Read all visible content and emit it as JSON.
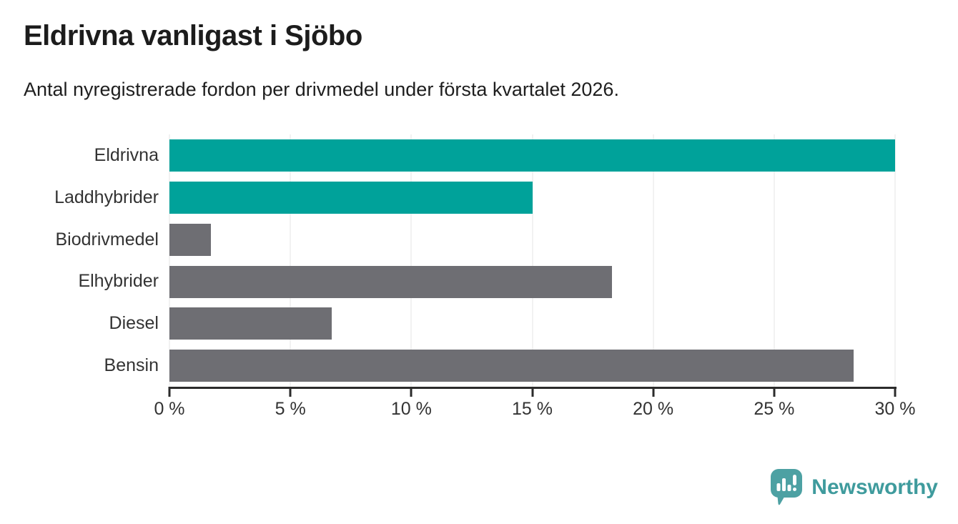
{
  "title": "Eldrivna vanligast i Sjöbo",
  "subtitle": "Antal nyregistrerade fordon per drivmedel under första kvartalet 2026.",
  "colors": {
    "teal_bar": "#00a29a",
    "gray_bar": "#6e6e73",
    "axis": "#2b2b2b",
    "grid": "#e4e4e4",
    "label_text": "#333333",
    "title_text": "#1c1c1c",
    "brand": "#3f9b9d",
    "brand_icon": "#4da1a3"
  },
  "chart_data": {
    "type": "bar",
    "orientation": "horizontal",
    "title": "Eldrivna vanligast i Sjöbo",
    "subtitle": "Antal nyregistrerade fordon per drivmedel under första kvartalet 2026.",
    "xlabel": "",
    "ylabel": "",
    "categories": [
      "Eldrivna",
      "Laddhybrider",
      "Biodrivmedel",
      "Elhybrider",
      "Diesel",
      "Bensin"
    ],
    "values": [
      30,
      15,
      1.7,
      18.3,
      6.7,
      28.3
    ],
    "unit": "%",
    "bar_colors": [
      "#00a29a",
      "#00a29a",
      "#6e6e73",
      "#6e6e73",
      "#6e6e73",
      "#6e6e73"
    ],
    "xlim": [
      0,
      30
    ],
    "x_tick_values": [
      0,
      5,
      10,
      15,
      20,
      25,
      30
    ],
    "x_ticks": [
      "0 %",
      "5 %",
      "10 %",
      "15 %",
      "20 %",
      "25 %",
      "30 %"
    ],
    "grid": true,
    "legend": false
  },
  "footer": {
    "brand": "Newsworthy"
  }
}
